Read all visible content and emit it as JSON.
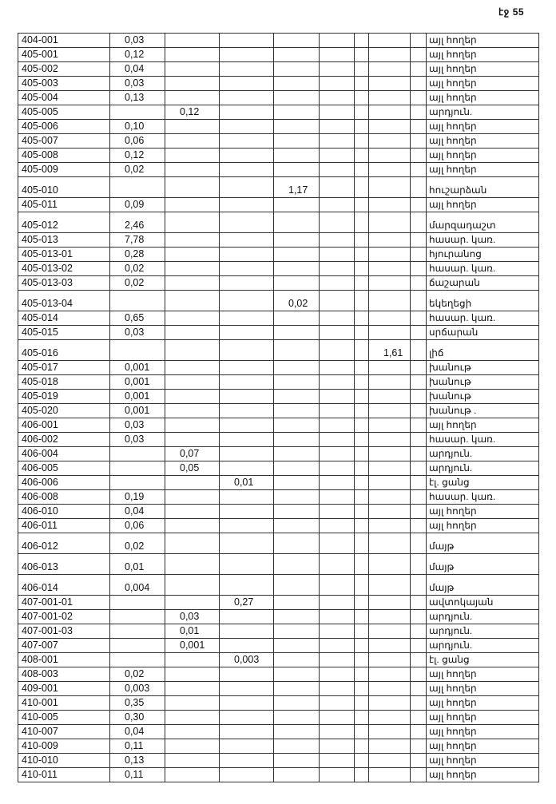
{
  "page_number": "էջ 55",
  "rows": [
    {
      "id": "404-001",
      "c1": "0,03",
      "c2": "",
      "c3": "",
      "c4": "",
      "c7": "",
      "name": "այլ հողեր",
      "tall": false
    },
    {
      "id": "405-001",
      "c1": "0,12",
      "c2": "",
      "c3": "",
      "c4": "",
      "c7": "",
      "name": "այլ հողեր",
      "tall": false
    },
    {
      "id": "405-002",
      "c1": "0,04",
      "c2": "",
      "c3": "",
      "c4": "",
      "c7": "",
      "name": "այլ հողեր",
      "tall": false
    },
    {
      "id": "405-003",
      "c1": "0,03",
      "c2": "",
      "c3": "",
      "c4": "",
      "c7": "",
      "name": "այլ հողեր",
      "tall": false
    },
    {
      "id": "405-004",
      "c1": "0,13",
      "c2": "",
      "c3": "",
      "c4": "",
      "c7": "",
      "name": "այլ հողեր",
      "tall": false
    },
    {
      "id": "405-005",
      "c1": "",
      "c2": "0,12",
      "c3": "",
      "c4": "",
      "c7": "",
      "name": "արդյուն.",
      "tall": false
    },
    {
      "id": "405-006",
      "c1": "0,10",
      "c2": "",
      "c3": "",
      "c4": "",
      "c7": "",
      "name": "այլ հողեր",
      "tall": false
    },
    {
      "id": "405-007",
      "c1": "0,06",
      "c2": "",
      "c3": "",
      "c4": "",
      "c7": "",
      "name": "այլ հողեր",
      "tall": false
    },
    {
      "id": "405-008",
      "c1": "0,12",
      "c2": "",
      "c3": "",
      "c4": "",
      "c7": "",
      "name": "այլ հողեր",
      "tall": false
    },
    {
      "id": "405-009",
      "c1": "0,02",
      "c2": "",
      "c3": "",
      "c4": "",
      "c7": "",
      "name": "այլ հողեր",
      "tall": false
    },
    {
      "id": "405-010",
      "c1": "",
      "c2": "",
      "c3": "",
      "c4": "1,17",
      "c7": "",
      "name": "հուշարձան",
      "tall": true
    },
    {
      "id": "405-011",
      "c1": "0,09",
      "c2": "",
      "c3": "",
      "c4": "",
      "c7": "",
      "name": "այլ հողեր",
      "tall": false
    },
    {
      "id": "405-012",
      "c1": "2,46",
      "c2": "",
      "c3": "",
      "c4": "",
      "c7": "",
      "name": "մարզադաշտ",
      "tall": true
    },
    {
      "id": "405-013",
      "c1": "7,78",
      "c2": "",
      "c3": "",
      "c4": "",
      "c7": "",
      "name": "հասար. կառ.",
      "tall": false
    },
    {
      "id": "405-013-01",
      "c1": "0,28",
      "c2": "",
      "c3": "",
      "c4": "",
      "c7": "",
      "name": "հյուրանոց",
      "tall": false
    },
    {
      "id": "405-013-02",
      "c1": "0,02",
      "c2": "",
      "c3": "",
      "c4": "",
      "c7": "",
      "name": "հասար. կառ.",
      "tall": false
    },
    {
      "id": "405-013-03",
      "c1": "0,02",
      "c2": "",
      "c3": "",
      "c4": "",
      "c7": "",
      "name": "ճաշարան",
      "tall": false
    },
    {
      "id": "405-013-04",
      "c1": "",
      "c2": "",
      "c3": "",
      "c4": "0,02",
      "c7": "",
      "name": "եկեղեցի",
      "tall": true
    },
    {
      "id": "405-014",
      "c1": "0,65",
      "c2": "",
      "c3": "",
      "c4": "",
      "c7": "",
      "name": "հասար. կառ.",
      "tall": false
    },
    {
      "id": "405-015",
      "c1": "0,03",
      "c2": "",
      "c3": "",
      "c4": "",
      "c7": "",
      "name": "սրճարան",
      "tall": false
    },
    {
      "id": "405-016",
      "c1": "",
      "c2": "",
      "c3": "",
      "c4": "",
      "c7": "1,61",
      "name": "լիճ",
      "tall": true
    },
    {
      "id": "405-017",
      "c1": "0,001",
      "c2": "",
      "c3": "",
      "c4": "",
      "c7": "",
      "name": "խանութ",
      "tall": false
    },
    {
      "id": "405-018",
      "c1": "0,001",
      "c2": "",
      "c3": "",
      "c4": "",
      "c7": "",
      "name": "խանութ",
      "tall": false
    },
    {
      "id": "405-019",
      "c1": "0,001",
      "c2": "",
      "c3": "",
      "c4": "",
      "c7": "",
      "name": "խանութ",
      "tall": false
    },
    {
      "id": "405-020",
      "c1": "0,001",
      "c2": "",
      "c3": "",
      "c4": "",
      "c7": "",
      "name": "խանութ .",
      "tall": false
    },
    {
      "id": "406-001",
      "c1": "0,03",
      "c2": "",
      "c3": "",
      "c4": "",
      "c7": "",
      "name": "այլ հողեր",
      "tall": false
    },
    {
      "id": "406-002",
      "c1": "0,03",
      "c2": "",
      "c3": "",
      "c4": "",
      "c7": "",
      "name": "հասար. կառ.",
      "tall": false
    },
    {
      "id": "406-004",
      "c1": "",
      "c2": "0,07",
      "c3": "",
      "c4": "",
      "c7": "",
      "name": "արդյուն.",
      "tall": false
    },
    {
      "id": "406-005",
      "c1": "",
      "c2": "0,05",
      "c3": "",
      "c4": "",
      "c7": "",
      "name": "արդյուն.",
      "tall": false
    },
    {
      "id": "406-006",
      "c1": "",
      "c2": "",
      "c3": "0,01",
      "c4": "",
      "c7": "",
      "name": "էլ. ցանց",
      "tall": false
    },
    {
      "id": "406-008",
      "c1": "0,19",
      "c2": "",
      "c3": "",
      "c4": "",
      "c7": "",
      "name": "հասար. կառ.",
      "tall": false
    },
    {
      "id": "406-010",
      "c1": "0,04",
      "c2": "",
      "c3": "",
      "c4": "",
      "c7": "",
      "name": "այլ հողեր",
      "tall": false
    },
    {
      "id": "406-011",
      "c1": "0,06",
      "c2": "",
      "c3": "",
      "c4": "",
      "c7": "",
      "name": "այլ հողեր",
      "tall": false
    },
    {
      "id": "406-012",
      "c1": "0,02",
      "c2": "",
      "c3": "",
      "c4": "",
      "c7": "",
      "name": "մայթ",
      "tall": true
    },
    {
      "id": "406-013",
      "c1": "0,01",
      "c2": "",
      "c3": "",
      "c4": "",
      "c7": "",
      "name": "մայթ",
      "tall": true
    },
    {
      "id": "406-014",
      "c1": "0,004",
      "c2": "",
      "c3": "",
      "c4": "",
      "c7": "",
      "name": "մայթ",
      "tall": true
    },
    {
      "id": "407-001-01",
      "c1": "",
      "c2": "",
      "c3": "0,27",
      "c4": "",
      "c7": "",
      "name": "ավտոկայան",
      "tall": false
    },
    {
      "id": "407-001-02",
      "c1": "",
      "c2": "0,03",
      "c3": "",
      "c4": "",
      "c7": "",
      "name": "արդյուն.",
      "tall": false
    },
    {
      "id": "407-001-03",
      "c1": "",
      "c2": "0,01",
      "c3": "",
      "c4": "",
      "c7": "",
      "name": "արդյուն.",
      "tall": false
    },
    {
      "id": "407-007",
      "c1": "",
      "c2": "0,001",
      "c3": "",
      "c4": "",
      "c7": "",
      "name": "արդյուն.",
      "tall": false
    },
    {
      "id": "408-001",
      "c1": "",
      "c2": "",
      "c3": "0,003",
      "c4": "",
      "c7": "",
      "name": "էլ. ցանց",
      "tall": false
    },
    {
      "id": "408-003",
      "c1": "0,02",
      "c2": "",
      "c3": "",
      "c4": "",
      "c7": "",
      "name": "այլ հողեր",
      "tall": false
    },
    {
      "id": "409-001",
      "c1": "0,003",
      "c2": "",
      "c3": "",
      "c4": "",
      "c7": "",
      "name": "այլ հողեր",
      "tall": false
    },
    {
      "id": "410-001",
      "c1": "0,35",
      "c2": "",
      "c3": "",
      "c4": "",
      "c7": "",
      "name": "այլ հողեր",
      "tall": false
    },
    {
      "id": "410-005",
      "c1": "0,30",
      "c2": "",
      "c3": "",
      "c4": "",
      "c7": "",
      "name": "այլ հողեր",
      "tall": false
    },
    {
      "id": "410-007",
      "c1": "0,04",
      "c2": "",
      "c3": "",
      "c4": "",
      "c7": "",
      "name": "այլ հողեր",
      "tall": false
    },
    {
      "id": "410-009",
      "c1": "0,11",
      "c2": "",
      "c3": "",
      "c4": "",
      "c7": "",
      "name": "այլ հողեր",
      "tall": false
    },
    {
      "id": "410-010",
      "c1": "0,13",
      "c2": "",
      "c3": "",
      "c4": "",
      "c7": "",
      "name": "այլ հողեր",
      "tall": false
    },
    {
      "id": "410-011",
      "c1": "0,11",
      "c2": "",
      "c3": "",
      "c4": "",
      "c7": "",
      "name": "այլ հողեր",
      "tall": false
    }
  ]
}
